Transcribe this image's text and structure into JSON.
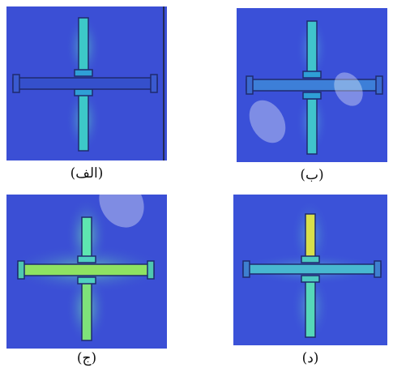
{
  "figure": {
    "panels": [
      {
        "id": "alef",
        "caption": "(الف)"
      },
      {
        "id": "be",
        "caption": "(ب)"
      },
      {
        "id": "jim",
        "caption": "(ج)"
      },
      {
        "id": "dal",
        "caption": "(د)"
      }
    ]
  },
  "colors": {
    "field_background": "#3a4fd6",
    "slot_edge": "#1f2a6e",
    "field_cyan": "#3fd0c8",
    "field_green": "#7be35a",
    "field_yellow": "#e6e25a",
    "watermark": "#cfd6f0"
  }
}
